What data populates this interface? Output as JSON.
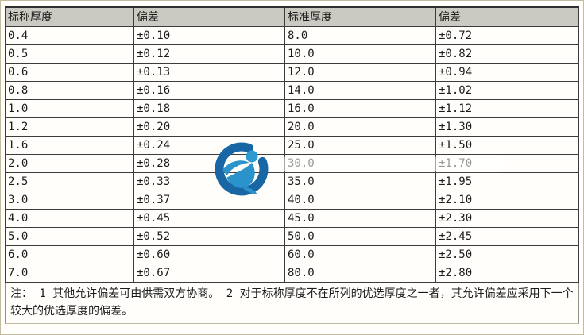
{
  "table": {
    "columns": [
      "标称厚度",
      "偏差",
      "标准厚度",
      "偏差"
    ],
    "rows": [
      [
        "0.4",
        "±0.10",
        "8.0",
        "±0.72"
      ],
      [
        "0.5",
        "±0.12",
        "10.0",
        "±0.82"
      ],
      [
        "0.6",
        "±0.13",
        "12.0",
        "±0.94"
      ],
      [
        "0.8",
        "±0.16",
        "14.0",
        "±1.02"
      ],
      [
        "1.0",
        "±0.18",
        "16.0",
        "±1.12"
      ],
      [
        "1.2",
        "±0.20",
        "20.0",
        "±1.30"
      ],
      [
        "1.6",
        "±0.24",
        "25.0",
        "±1.50"
      ],
      [
        "2.0",
        "±0.28",
        "30.0",
        "±1.70"
      ],
      [
        "2.5",
        "±0.33",
        "35.0",
        "±1.95"
      ],
      [
        "3.0",
        "±0.37",
        "40.0",
        "±2.10"
      ],
      [
        "4.0",
        "±0.45",
        "45.0",
        "±2.30"
      ],
      [
        "5.0",
        "±0.52",
        "50.0",
        "±2.45"
      ],
      [
        "6.0",
        "±0.60",
        "60.0",
        "±2.50"
      ],
      [
        "7.0",
        "±0.67",
        "80.0",
        "±2.80"
      ]
    ],
    "note": "注：  1 其他允许偏差可由供需双方协商。  2 对于标称厚度不在所列的优选厚度之一者，其允许偏差应采用下一个较大的优选厚度的偏差。"
  },
  "icons": {
    "watermark_logo": "company-logo"
  },
  "colors": {
    "header_bg": "#cbcac2",
    "cell_border": "#3c3c3c",
    "frame_border": "#c3bca2",
    "logo_ring": "#1866a4",
    "logo_body": "#2b93cb",
    "logo_head": "#2f9ad2"
  }
}
